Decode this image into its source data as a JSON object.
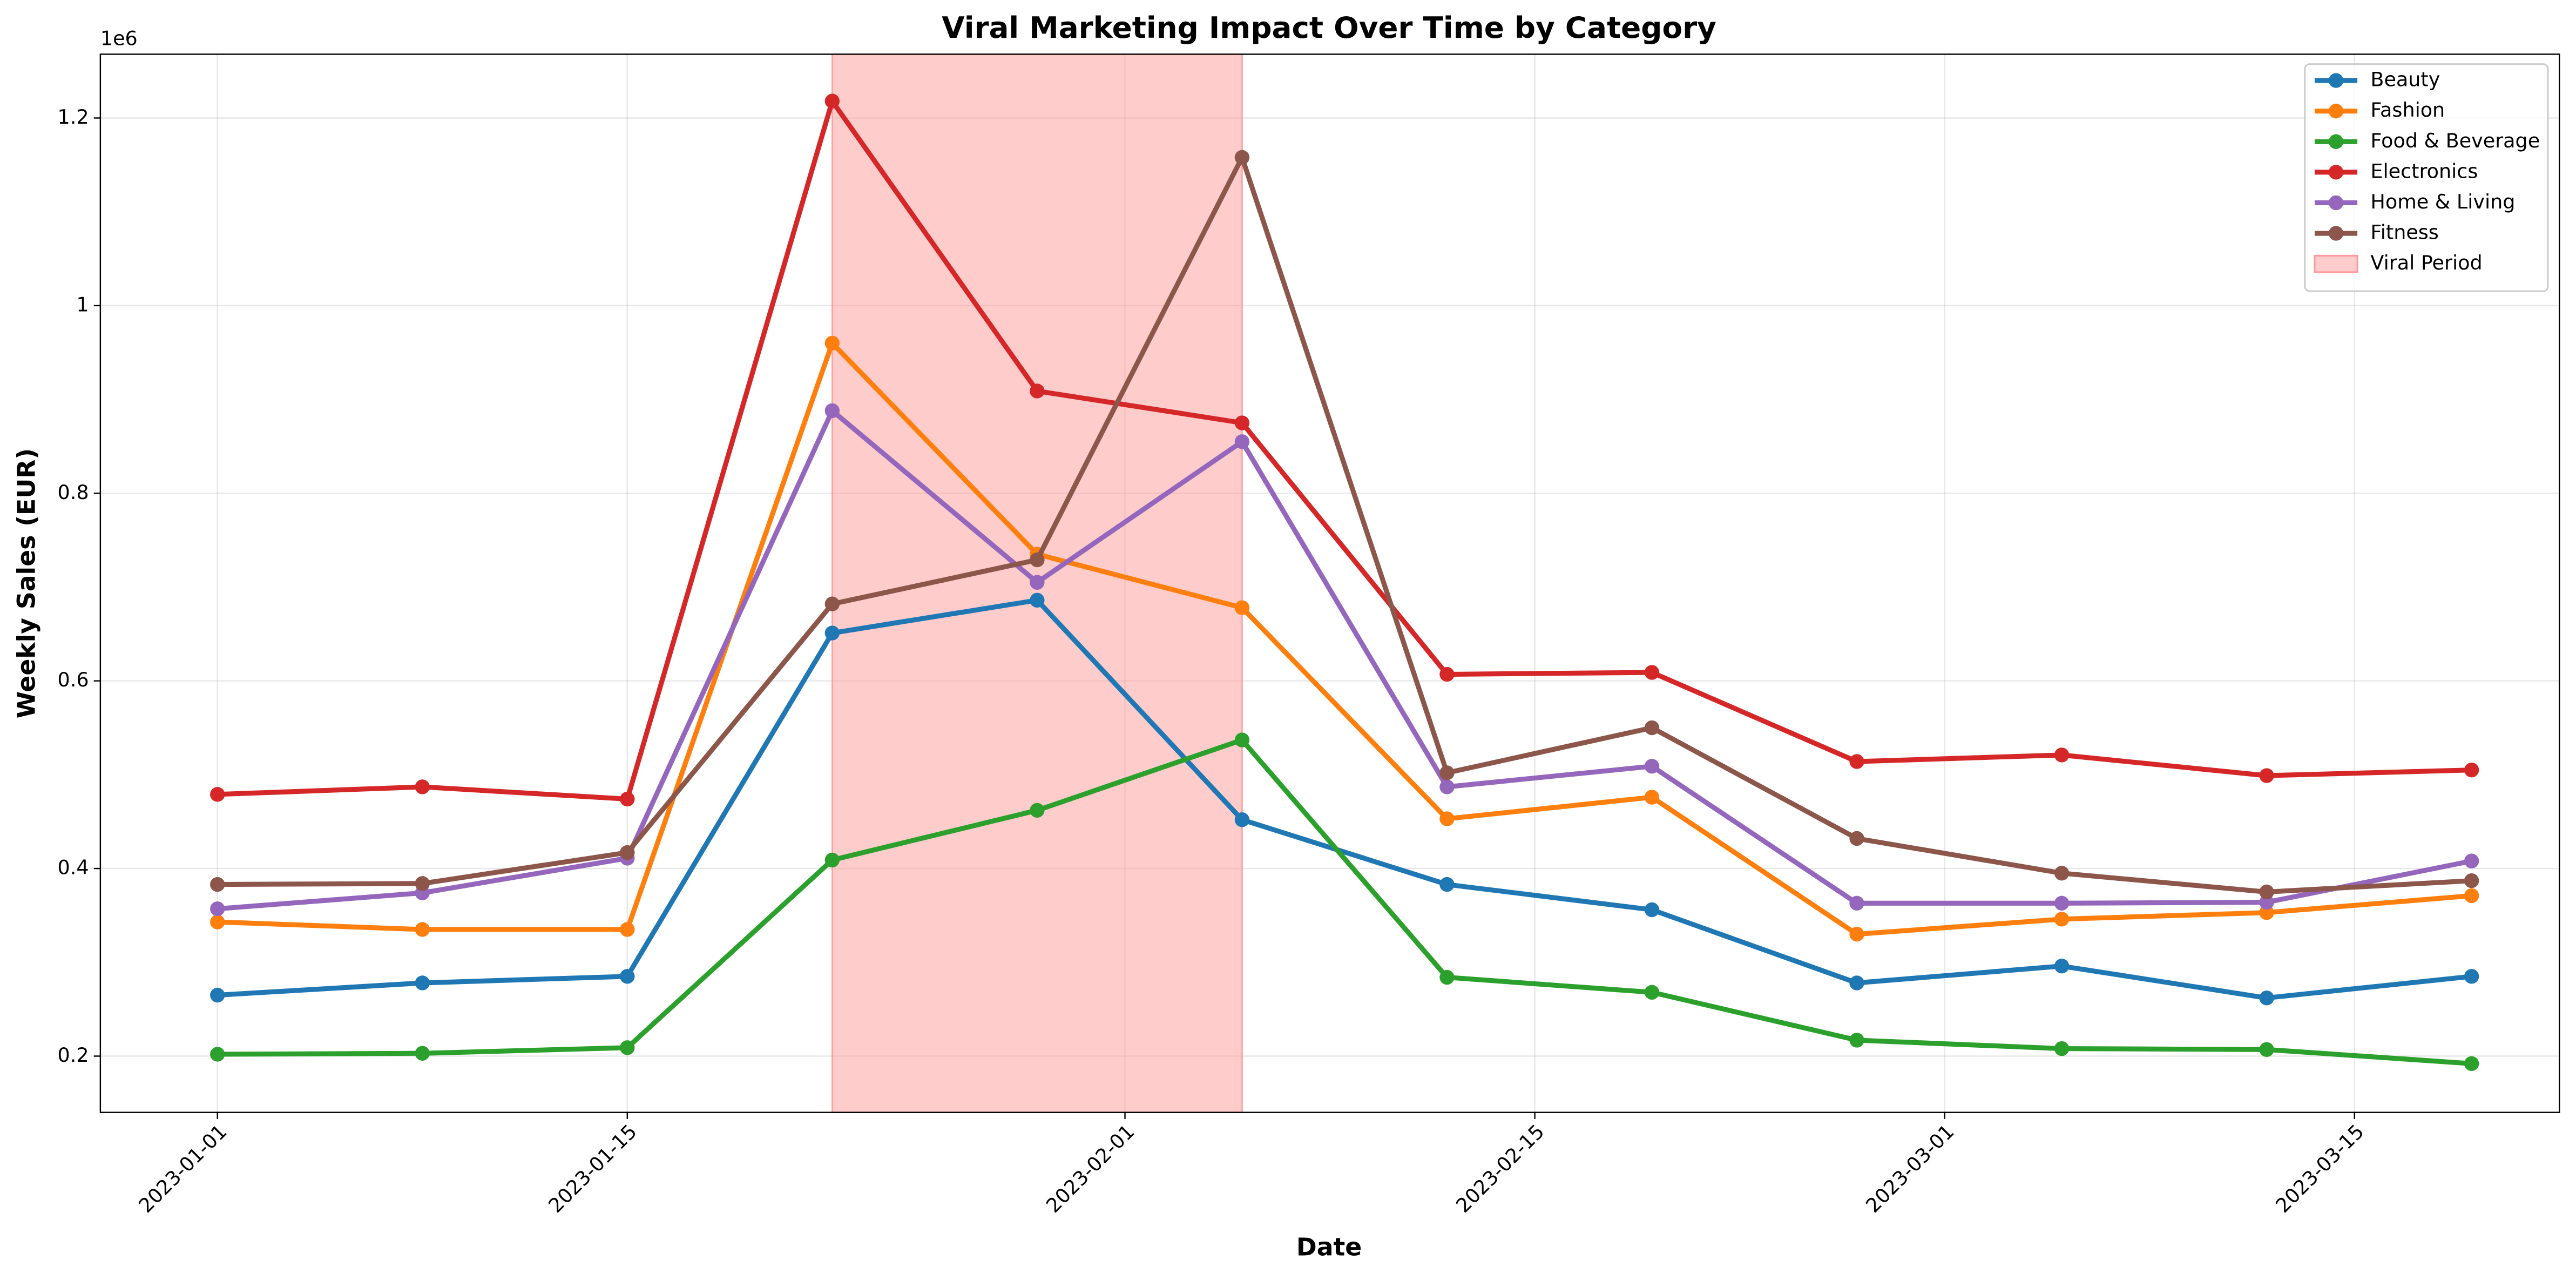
{
  "chart_data": {
    "type": "line",
    "title": "Viral Marketing Impact Over Time by Category",
    "x_label": "Date",
    "y_label": "Weekly Sales (EUR)",
    "y_offset_label": "1e6",
    "x": [
      "2023-01-01",
      "2023-01-08",
      "2023-01-15",
      "2023-01-22",
      "2023-01-29",
      "2023-02-05",
      "2023-02-12",
      "2023-02-19",
      "2023-02-26",
      "2023-03-05",
      "2023-03-12",
      "2023-03-19"
    ],
    "series": [
      {
        "name": "Beauty",
        "color": "#1f77b4",
        "values": [
          0.265,
          0.278,
          0.285,
          0.651,
          0.686,
          0.452,
          0.383,
          0.356,
          0.278,
          0.296,
          0.262,
          0.285
        ]
      },
      {
        "name": "Fashion",
        "color": "#ff7f0e",
        "values": [
          0.343,
          0.335,
          0.335,
          0.96,
          0.735,
          0.678,
          0.453,
          0.476,
          0.33,
          0.346,
          0.353,
          0.371
        ]
      },
      {
        "name": "Food & Beverage",
        "color": "#2ca02c",
        "values": [
          0.202,
          0.203,
          0.209,
          0.409,
          0.462,
          0.537,
          0.284,
          0.268,
          0.217,
          0.208,
          0.207,
          0.192
        ]
      },
      {
        "name": "Electronics",
        "color": "#d62728",
        "values": [
          0.479,
          0.487,
          0.474,
          1.218,
          0.909,
          0.875,
          0.607,
          0.609,
          0.514,
          0.521,
          0.499,
          0.505
        ]
      },
      {
        "name": "Home & Living",
        "color": "#9467bd",
        "values": [
          0.357,
          0.374,
          0.411,
          0.888,
          0.705,
          0.855,
          0.487,
          0.509,
          0.363,
          0.363,
          0.364,
          0.408
        ]
      },
      {
        "name": "Fitness",
        "color": "#8c564b",
        "values": [
          0.383,
          0.384,
          0.417,
          0.682,
          0.729,
          1.158,
          0.502,
          0.55,
          0.432,
          0.395,
          0.375,
          0.387
        ]
      }
    ],
    "span": {
      "label": "Viral Period",
      "start": "2023-01-22",
      "end": "2023-02-05",
      "color": "#ff9999"
    },
    "xlim": [
      "2022-12-28",
      "2023-03-22"
    ],
    "xticks": [
      "2023-01-01",
      "2023-01-15",
      "2023-02-01",
      "2023-02-15",
      "2023-03-01",
      "2023-03-15"
    ],
    "ylim": [
      0.14,
      1.268
    ],
    "yticks": [
      0.2,
      0.4,
      0.6,
      0.8,
      1.0,
      1.2
    ],
    "grid": true,
    "legend": "upper right"
  }
}
